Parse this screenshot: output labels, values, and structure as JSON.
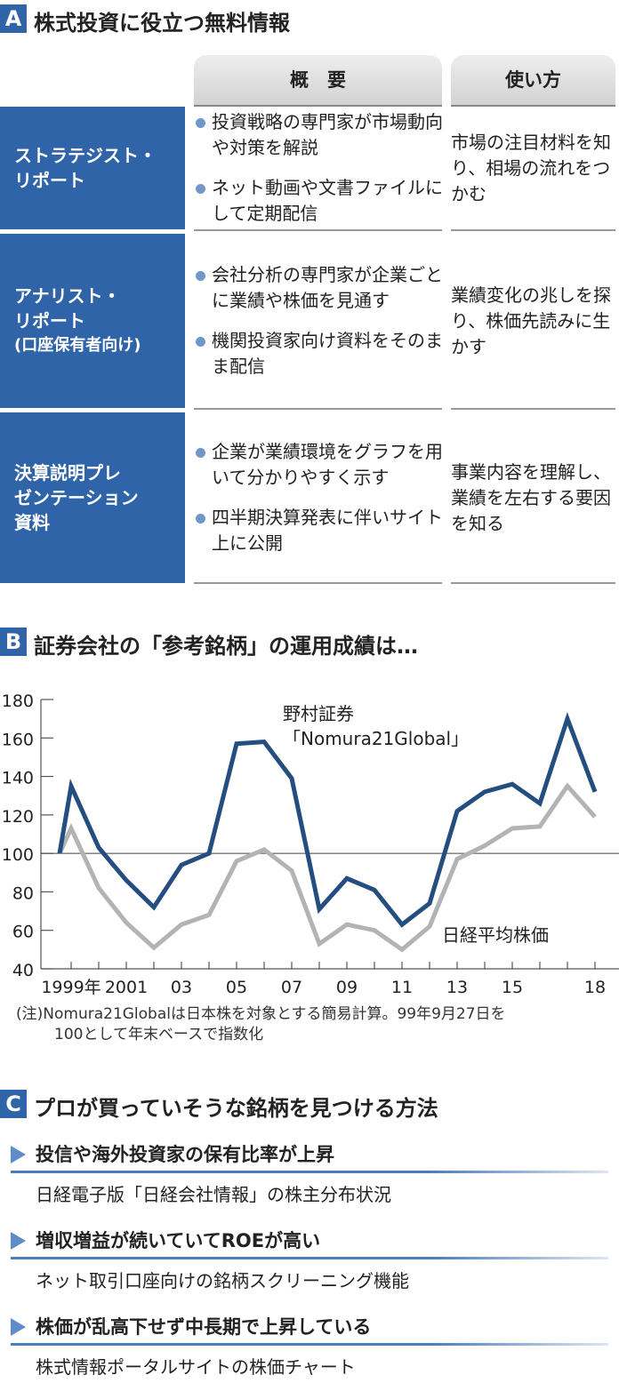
{
  "section_a": {
    "badge": "A",
    "title": "株式投資に役立つ無料情報",
    "columns": [
      "概　要",
      "使い方"
    ],
    "rows": [
      {
        "name": "ストラテジスト・リポート",
        "name_lines": [
          "ストラテジスト・",
          "リポート"
        ],
        "sub": "",
        "summary": [
          "投資戦略の専門家が市場動向や対策を解説",
          "ネット動画や文書ファイルにして定期配信"
        ],
        "usage": "市場の注目材料を知り、相場の流れをつかむ"
      },
      {
        "name": "アナリスト・リポート",
        "name_lines": [
          "アナリスト・",
          "リポート"
        ],
        "sub": "(口座保有者向け)",
        "summary": [
          "会社分析の専門家が企業ごとに業績や株価を見通す",
          "機関投資家向け資料をそのまま配信"
        ],
        "usage": "業績変化の兆しを探り、株価先読みに生かす"
      },
      {
        "name": "決算説明プレゼンテーション資料",
        "name_lines": [
          "決算説明プレ",
          "ゼンテーション",
          "資料"
        ],
        "sub": "",
        "summary": [
          "企業が業績環境をグラフを用いて分かりやすく示す",
          "四半期決算発表に伴いサイト上に公開"
        ],
        "usage": "事業内容を理解し、業績を左右する要因を知る"
      }
    ],
    "colors": {
      "row_header": "#2f64a8",
      "bullet": "#6f98c8"
    }
  },
  "section_b": {
    "badge": "B",
    "title": "証券会社の「参考銘柄」の運用成績は…",
    "note_lines": [
      "(注)Nomura21Globalは日本株を対象とする簡易計算。99年9月27日を",
      "100として年末ベースで指数化"
    ]
  },
  "chart_data": {
    "type": "line",
    "x": [
      "1999/9/27",
      "1999",
      "2000",
      "2001",
      "2002",
      "2003",
      "2004",
      "2005",
      "2006",
      "2007",
      "2008",
      "2009",
      "2010",
      "2011",
      "2012",
      "2013",
      "2014",
      "2015",
      "2016",
      "2017",
      "2018"
    ],
    "series": [
      {
        "name": "野村証券「Nomura21Global」",
        "label_lines": [
          "野村証券",
          "「Nomura21Global」"
        ],
        "color": "#244e80",
        "values": [
          100,
          135,
          103,
          86,
          72,
          94,
          100,
          157,
          158,
          139,
          71,
          87,
          81,
          63,
          74,
          122,
          132,
          136,
          126,
          170,
          132
        ]
      },
      {
        "name": "日経平均株価",
        "label_lines": [
          "日経平均株価"
        ],
        "color": "#b3b3b3",
        "values": [
          100,
          113,
          82,
          64,
          51,
          63,
          68,
          96,
          102,
          91,
          53,
          63,
          60,
          50,
          62,
          97,
          104,
          113,
          114,
          135,
          119
        ]
      }
    ],
    "ylim": [
      40,
      180
    ],
    "yticks": [
      40,
      60,
      80,
      100,
      120,
      140,
      160,
      180
    ],
    "reference_line": 100,
    "xtick_labels": [
      {
        "year": "1999",
        "label": "1999年"
      },
      {
        "year": "2001",
        "label": "2001"
      },
      {
        "year": "2003",
        "label": "03"
      },
      {
        "year": "2005",
        "label": "05"
      },
      {
        "year": "2007",
        "label": "07"
      },
      {
        "year": "2009",
        "label": "09"
      },
      {
        "year": "2011",
        "label": "11"
      },
      {
        "year": "2013",
        "label": "13"
      },
      {
        "year": "2015",
        "label": "15"
      },
      {
        "year": "2018",
        "label": "18"
      }
    ],
    "grid": false
  },
  "section_c": {
    "badge": "C",
    "title": "プロが買っていそうな銘柄を見つける方法",
    "items": [
      {
        "heading": "投信や海外投資家の保有比率が上昇",
        "detail": "日経電子版「日経会社情報」の株主分布状況"
      },
      {
        "heading": "増収増益が続いていてROEが高い",
        "detail": "ネット取引口座向けの銘柄スクリーニング機能"
      },
      {
        "heading": "株価が乱高下せず中長期で上昇している",
        "detail": "株式情報ポータルサイトの株価チャート"
      }
    ]
  }
}
